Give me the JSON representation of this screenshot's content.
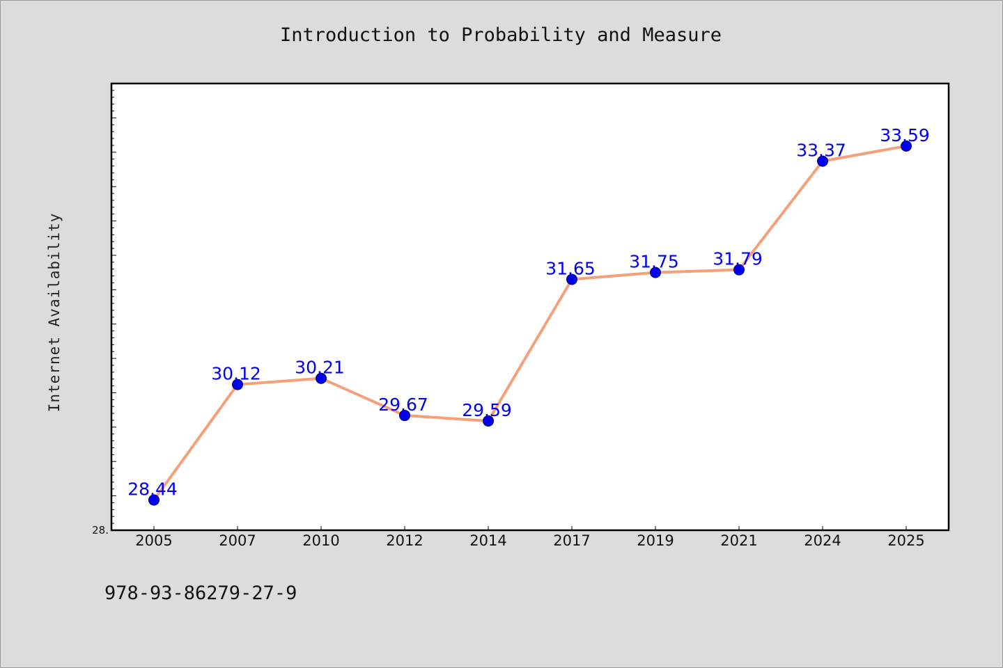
{
  "chart_data": {
    "type": "line",
    "title": "Introduction to Probability and Measure",
    "xlabel": "",
    "ylabel": "Internet Availability",
    "categories": [
      "2005",
      "2007",
      "2010",
      "2012",
      "2014",
      "2017",
      "2019",
      "2021",
      "2024",
      "2025"
    ],
    "series": [
      {
        "values": [
          28.44,
          30.12,
          30.21,
          29.67,
          29.59,
          31.65,
          31.75,
          31.79,
          33.37,
          33.59
        ]
      }
    ],
    "ylim": [
      28.0,
      34.5
    ],
    "y_axis_min_label": "28.",
    "grid": false,
    "legend": "none",
    "colors": {
      "line": "#f4a07a",
      "marker": "#0000ee",
      "marker_edge": "#000066",
      "data_label": "#0000ee",
      "plot_bg": "#ffffff",
      "frame": "#000000"
    }
  },
  "footer": {
    "isbn": "978-93-86279-27-9"
  }
}
